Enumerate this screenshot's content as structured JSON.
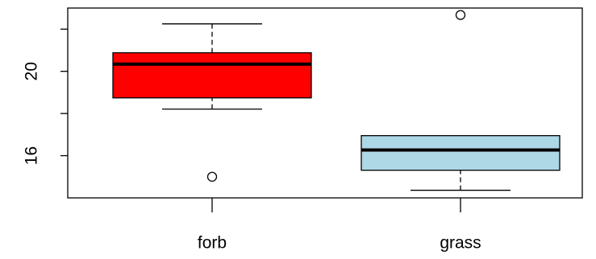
{
  "chart_data": {
    "type": "boxplot",
    "categories": [
      "forb",
      "grass"
    ],
    "boxes": [
      {
        "whisker_low": 18.21,
        "q1": 18.74,
        "median": 20.34,
        "q3": 20.88,
        "whisker_high": 22.25,
        "outliers": [
          15.0
        ],
        "color": "#ff0000"
      },
      {
        "whisker_low": 14.36,
        "q1": 15.31,
        "median": 16.27,
        "q3": 16.95,
        "whisker_high": 16.95,
        "outliers": [
          22.67
        ],
        "color": "#add8e6"
      }
    ],
    "ylim": [
      14.0,
      23.0
    ],
    "yticks": [
      16,
      20
    ],
    "minor_yticks": [
      18,
      22
    ]
  }
}
